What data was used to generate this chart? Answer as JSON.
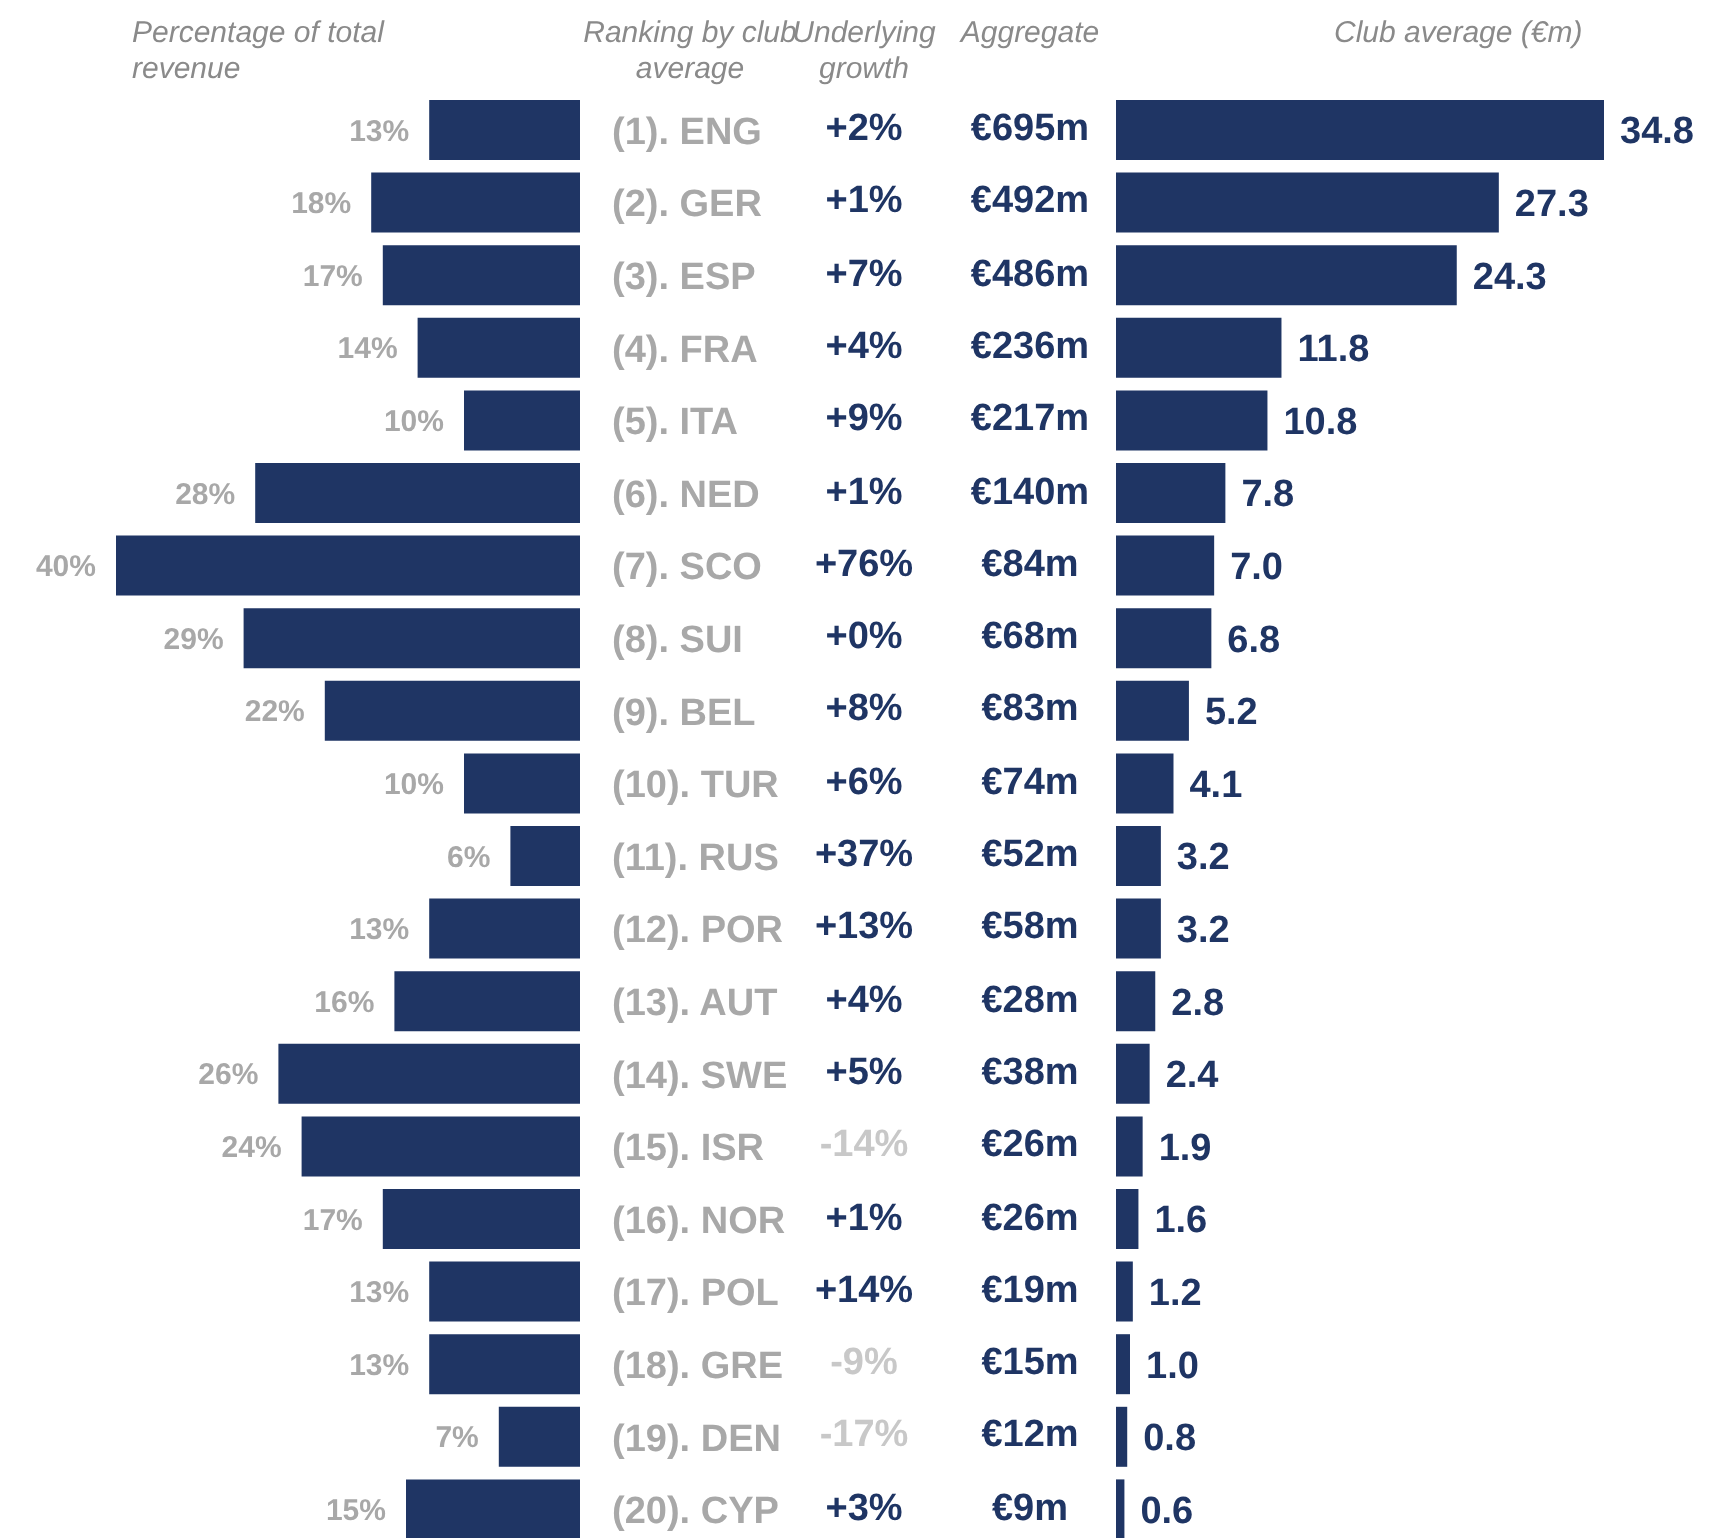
{
  "chart_data": [
    {
      "type": "bar",
      "orientation": "horizontal",
      "title": "Percentage of total revenue",
      "ylabel": "Ranking by club average",
      "categories": [
        "(1). ENG",
        "(2). GER",
        "(3). ESP",
        "(4). FRA",
        "(5). ITA",
        "(6). NED",
        "(7). SCO",
        "(8). SUI",
        "(9). BEL",
        "(10). TUR",
        "(11). RUS",
        "(12). POR",
        "(13). AUT",
        "(14). SWE",
        "(15). ISR",
        "(16). NOR",
        "(17). POL",
        "(18). GRE",
        "(19). DEN",
        "(20). CYP"
      ],
      "values": [
        13,
        18,
        17,
        14,
        10,
        28,
        40,
        29,
        22,
        10,
        6,
        13,
        16,
        26,
        24,
        17,
        13,
        13,
        7,
        15
      ],
      "value_labels": [
        "13%",
        "18%",
        "17%",
        "14%",
        "10%",
        "28%",
        "40%",
        "29%",
        "22%",
        "10%",
        "6%",
        "13%",
        "16%",
        "26%",
        "24%",
        "17%",
        "13%",
        "13%",
        "7%",
        "15%"
      ],
      "color": "#1f3564",
      "xlim": [
        40,
        0
      ],
      "tick_labels": "y"
    },
    {
      "type": "other",
      "title": "Underlying growth",
      "annotations": [
        "+2%",
        "+1%",
        "+7%",
        "+4%",
        "+9%",
        "+1%",
        "+76%",
        "+0%",
        "+8%",
        "+6%",
        "+37%",
        "+13%",
        "+4%",
        "+5%",
        "-14%",
        "+1%",
        "+14%",
        "-9%",
        "-17%",
        "+3%"
      ],
      "colors": [
        "#1f3564",
        "#1f3564",
        "#1f3564",
        "#1f3564",
        "#1f3564",
        "#1f3564",
        "#1f3564",
        "#1f3564",
        "#1f3564",
        "#1f3564",
        "#1f3564",
        "#1f3564",
        "#1f3564",
        "#1f3564",
        "#c8c8c8",
        "#1f3564",
        "#1f3564",
        "#c8c8c8",
        "#c8c8c8",
        "#1f3564"
      ]
    },
    {
      "type": "other",
      "title": "Aggregate",
      "annotations": [
        "€695m",
        "€492m",
        "€486m",
        "€236m",
        "€217m",
        "€140m",
        "€84m",
        "€68m",
        "€83m",
        "€74m",
        "€52m",
        "€58m",
        "€28m",
        "€38m",
        "€26m",
        "€26m",
        "€19m",
        "€15m",
        "€12m",
        "€9m"
      ],
      "colors": [
        "#1f3564",
        "#1f3564",
        "#1f3564",
        "#1f3564",
        "#1f3564",
        "#1f3564",
        "#1f3564",
        "#1f3564",
        "#1f3564",
        "#1f3564",
        "#1f3564",
        "#1f3564",
        "#1f3564",
        "#1f3564",
        "#1f3564",
        "#1f3564",
        "#1f3564",
        "#1f3564",
        "#1f3564",
        "#1f3564"
      ]
    },
    {
      "type": "bar",
      "orientation": "horizontal",
      "title": "Club average (€m)",
      "values": [
        34.8,
        27.3,
        24.3,
        11.8,
        10.8,
        7.8,
        7.0,
        6.8,
        5.2,
        4.1,
        3.2,
        3.2,
        2.8,
        2.4,
        1.9,
        1.6,
        1.2,
        1.0,
        0.8,
        0.6
      ],
      "value_labels": [
        "34.8",
        "27.3",
        "24.3",
        "11.8",
        "10.8",
        "7.8",
        "7.0",
        "6.8",
        "5.2",
        "4.1",
        "3.2",
        "3.2",
        "2.8",
        "2.4",
        "1.9",
        "1.6",
        "1.2",
        "1.0",
        "0.8",
        "0.6"
      ],
      "color": "#1f3564",
      "tick_labels": false
    }
  ]
}
